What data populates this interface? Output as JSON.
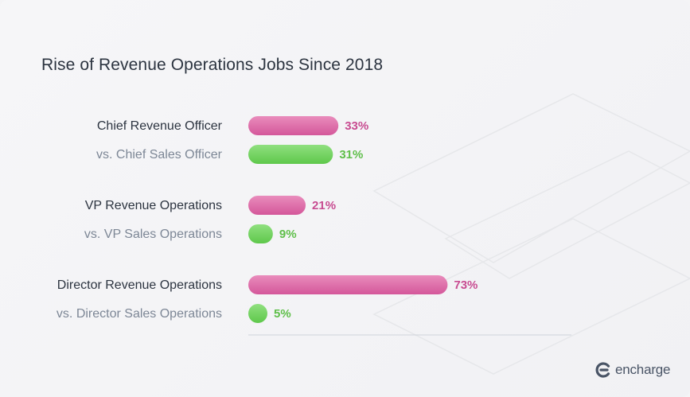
{
  "title": "Rise of Revenue Operations Jobs Since 2018",
  "brand": {
    "name": "encharge",
    "icon": "encharge-logo-icon"
  },
  "colors": {
    "revenue": "#d9619f",
    "sales": "#6bcf5a",
    "axis": "#cfd3da"
  },
  "chart_data": {
    "type": "bar",
    "orientation": "horizontal",
    "title": "Rise of Revenue Operations Jobs Since 2018",
    "groups": [
      {
        "revenue": {
          "label": "Chief Revenue Officer",
          "value": 33,
          "value_label": "33%"
        },
        "sales": {
          "label": "vs. Chief Sales Officer",
          "value": 31,
          "value_label": "31%"
        }
      },
      {
        "revenue": {
          "label": "VP Revenue Operations",
          "value": 21,
          "value_label": "21%"
        },
        "sales": {
          "label": "vs. VP Sales Operations",
          "value": 9,
          "value_label": "9%"
        }
      },
      {
        "revenue": {
          "label": "Director Revenue Operations",
          "value": 73,
          "value_label": "73%"
        },
        "sales": {
          "label": "vs. Director Sales Operations",
          "value": 5,
          "value_label": "5%"
        }
      }
    ],
    "xlim": [
      0,
      100
    ],
    "grid": false,
    "legend": "none"
  }
}
